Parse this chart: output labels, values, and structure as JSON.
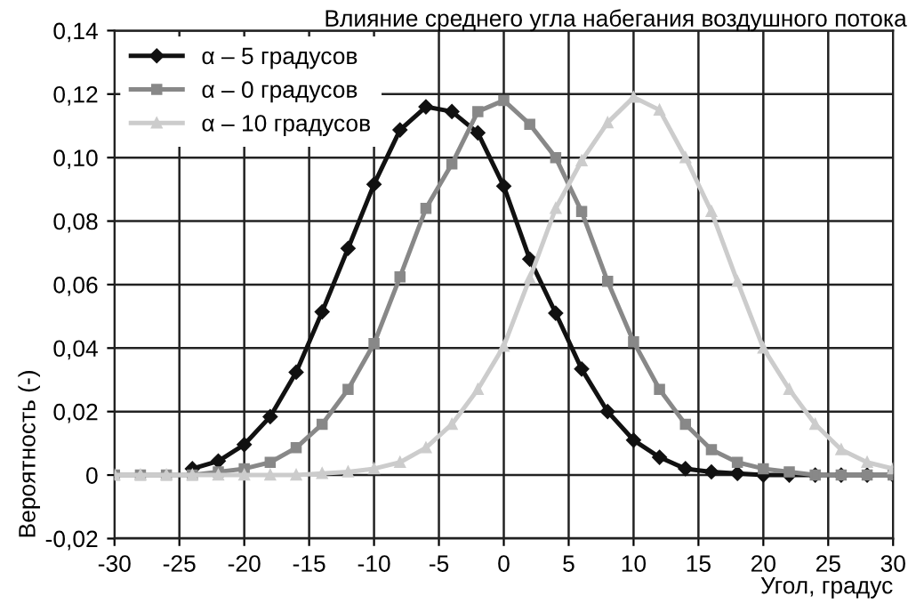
{
  "chart_data": {
    "type": "line",
    "title": "Влияние среднего угла набегания воздушного потока",
    "xlabel": "Угол, градус",
    "ylabel": "Вероятность (-)",
    "xlim": [
      -30,
      30
    ],
    "xticks": [
      -30,
      -25,
      -20,
      -15,
      -10,
      -5,
      0,
      5,
      10,
      15,
      20,
      25,
      30
    ],
    "ylim": [
      -0.02,
      0.14
    ],
    "yticks": [
      {
        "value": -0.02,
        "label": "-0,02"
      },
      {
        "value": 0,
        "label": "0"
      },
      {
        "value": 0.02,
        "label": "0,02"
      },
      {
        "value": 0.04,
        "label": "0,04"
      },
      {
        "value": 0.06,
        "label": "0,06"
      },
      {
        "value": 0.08,
        "label": "0,08"
      },
      {
        "value": 0.1,
        "label": "0,10"
      },
      {
        "value": 0.12,
        "label": "0,12"
      },
      {
        "value": 0.14,
        "label": "0,14"
      }
    ],
    "grid": true,
    "legend": "top left",
    "line_style": "solid",
    "series": [
      {
        "name": "α – 5 градусов",
        "color": "#111111",
        "marker": "diamond",
        "x": [
          -24,
          -22,
          -20,
          -18,
          -16,
          -14,
          -12,
          -10,
          -8,
          -6,
          -4,
          -2,
          0,
          2,
          4,
          6,
          8,
          10,
          12,
          14,
          16,
          18,
          20,
          22,
          24,
          26,
          28,
          30
        ],
        "values": [
          0.002,
          0.0044,
          0.0096,
          0.0184,
          0.0324,
          0.0514,
          0.0714,
          0.0916,
          0.1087,
          0.116,
          0.1145,
          0.1078,
          0.091,
          0.068,
          0.051,
          0.0334,
          0.02,
          0.011,
          0.0056,
          0.002,
          0.001,
          0.0005,
          0,
          0,
          0,
          0,
          0,
          0
        ]
      },
      {
        "name": "α – 0 градусов",
        "color": "#888888",
        "marker": "square",
        "x": [
          -30,
          -28,
          -26,
          -24,
          -22,
          -20,
          -18,
          -16,
          -14,
          -12,
          -10,
          -8,
          -6,
          -4,
          -2,
          0,
          2,
          4,
          6,
          8,
          10,
          12,
          14,
          16,
          18,
          20,
          22,
          24,
          26,
          28,
          30
        ],
        "values": [
          0,
          0,
          0,
          0,
          0.001,
          0.002,
          0.004,
          0.0086,
          0.016,
          0.027,
          0.0414,
          0.0624,
          0.084,
          0.098,
          0.1145,
          0.118,
          0.1105,
          0.1,
          0.083,
          0.061,
          0.042,
          0.027,
          0.016,
          0.008,
          0.004,
          0.002,
          0.001,
          0,
          0,
          0,
          0
        ]
      },
      {
        "name": "α – 10 градусов",
        "color": "#cccccc",
        "marker": "triangle",
        "x": [
          -30,
          -28,
          -26,
          -24,
          -22,
          -20,
          -18,
          -16,
          -14,
          -12,
          -10,
          -8,
          -6,
          -4,
          -2,
          0,
          2,
          4,
          6,
          8,
          10,
          12,
          14,
          16,
          18,
          20,
          22,
          24,
          26,
          28,
          30
        ],
        "values": [
          0,
          0,
          0,
          0,
          0,
          0,
          0,
          0,
          0.0005,
          0.001,
          0.002,
          0.004,
          0.0086,
          0.016,
          0.027,
          0.0406,
          0.062,
          0.084,
          0.099,
          0.111,
          0.119,
          0.115,
          0.1,
          0.083,
          0.061,
          0.04,
          0.027,
          0.016,
          0.008,
          0.004,
          0.002
        ]
      }
    ]
  }
}
